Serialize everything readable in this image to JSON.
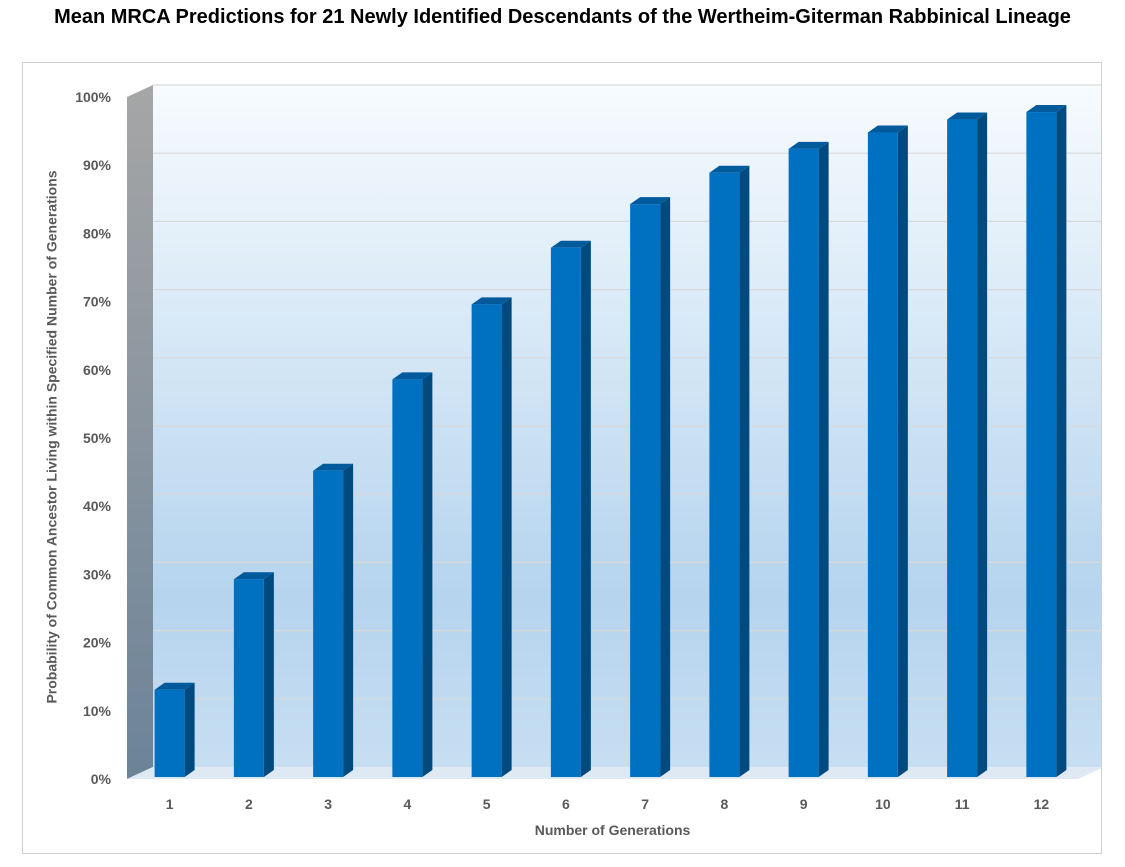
{
  "chart_data": {
    "type": "bar",
    "title": "Mean MRCA Predictions for 21 Newly Identified Descendants of the Wertheim-Giterman Rabbinical Lineage",
    "xlabel": "Number of Generations",
    "ylabel": "Probability  of Common Ancestor Living within  Specified Number of Generations",
    "categories": [
      "1",
      "2",
      "3",
      "4",
      "5",
      "6",
      "7",
      "8",
      "9",
      "10",
      "11",
      "12"
    ],
    "values": [
      12.8,
      29.0,
      44.9,
      58.3,
      69.3,
      77.6,
      84.0,
      88.6,
      92.1,
      94.5,
      96.4,
      97.5
    ],
    "ylim": [
      0,
      100
    ],
    "yticks": [
      "0%",
      "10%",
      "20%",
      "30%",
      "40%",
      "50%",
      "60%",
      "70%",
      "80%",
      "90%",
      "100%"
    ],
    "grid": true,
    "legend": "none",
    "style": "3d-column",
    "colors": {
      "bar": "#0070c0",
      "bar_side": "#004a80",
      "bar_top": "#005a9c"
    }
  }
}
